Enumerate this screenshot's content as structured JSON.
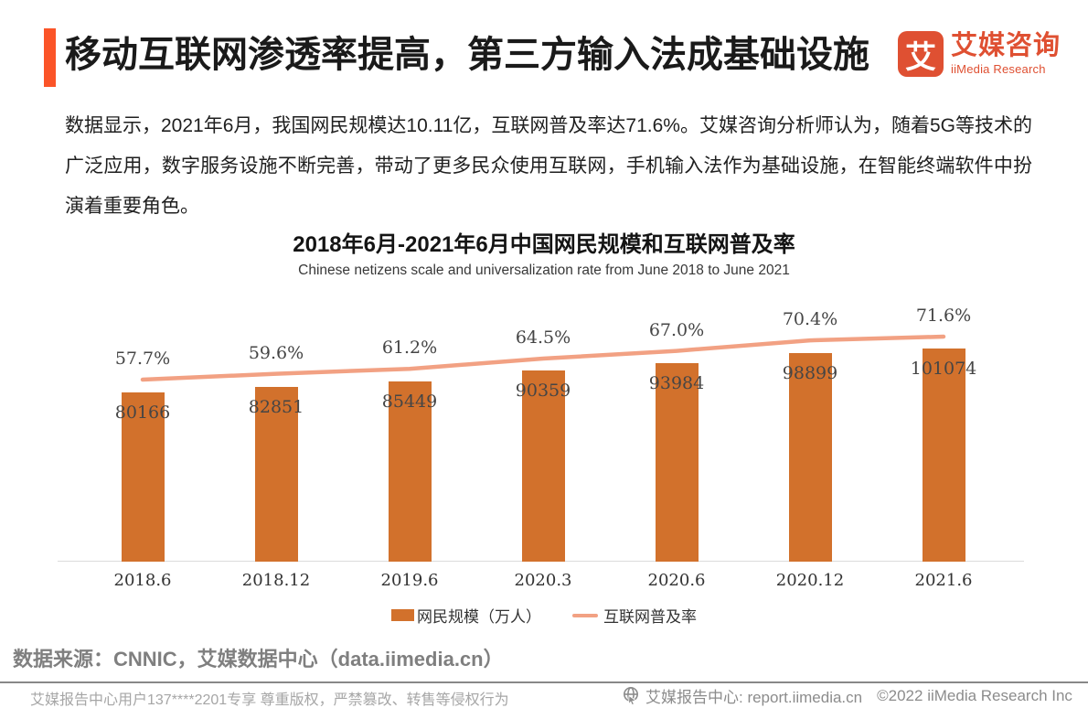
{
  "header": {
    "title": "移动互联网渗透率提高，第三方输入法成基础设施"
  },
  "logo": {
    "glyph": "艾",
    "name_cn": "艾媒咨询",
    "name_en": "iiMedia Research"
  },
  "intro": "数据显示，2021年6月，我国网民规模达10.11亿，互联网普及率达71.6%。艾媒咨询分析师认为，随着5G等技术的广泛应用，数字服务设施不断完善，带动了更多民众使用互联网，手机输入法作为基础设施，在智能终端软件中扮演着重要角色。",
  "chart_data": {
    "type": "bar",
    "title": "2018年6月-2021年6月中国网民规模和互联网普及率",
    "subtitle": "Chinese netizens scale and universalization rate from June 2018 to June 2021",
    "categories": [
      "2018.6",
      "2018.12",
      "2019.6",
      "2020.3",
      "2020.6",
      "2020.12",
      "2021.6"
    ],
    "series": [
      {
        "name": "网民规模（万人）",
        "type": "bar",
        "values": [
          80166,
          82851,
          85449,
          90359,
          93984,
          98899,
          101074
        ],
        "labels": [
          "80166",
          "82851",
          "85449",
          "90359",
          "93984",
          "98899",
          "101074"
        ],
        "color": "#d2712c"
      },
      {
        "name": "互联网普及率",
        "type": "line",
        "values": [
          57.7,
          59.6,
          61.2,
          64.5,
          67.0,
          70.4,
          71.6
        ],
        "labels": [
          "57.7%",
          "59.6%",
          "61.2%",
          "64.5%",
          "67.0%",
          "70.4%",
          "71.6%"
        ],
        "color": "#f2a183"
      }
    ],
    "ylim": [
      0,
      110000
    ],
    "grid": false,
    "legend_position": "bottom",
    "value_labels_shown": true
  },
  "source": "数据来源：CNNIC，艾媒数据中心（data.iimedia.cn）",
  "footer": {
    "left": "艾媒报告中心用户137****2201专享 尊重版权，严禁篡改、转售等侵权行为",
    "site": "艾媒报告中心: report.iimedia.cn",
    "copyright": "©2022 iiMedia Research Inc"
  },
  "colors": {
    "accent": "#fb5428",
    "brand": "#df5032",
    "bar": "#d2712c",
    "line": "#f2a183",
    "label_gray": "#454545",
    "axis_gray": "#dcdcdc"
  }
}
